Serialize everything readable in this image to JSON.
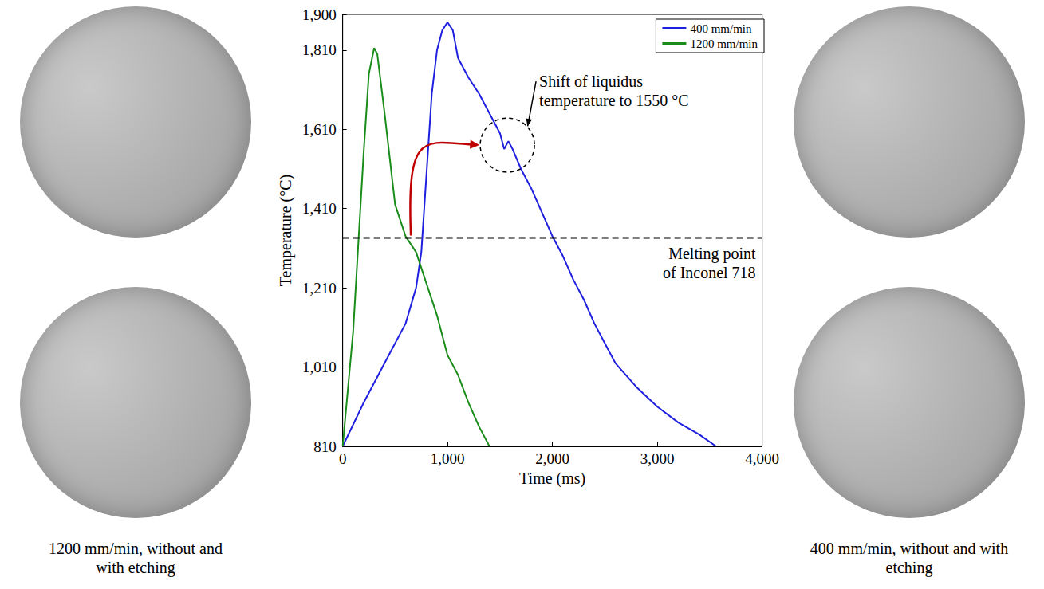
{
  "chart_data": {
    "type": "line",
    "xlabel": "Time (ms)",
    "ylabel": "Temperature (°C)",
    "xlim": [
      0,
      4000
    ],
    "xticks": [
      0,
      1000,
      2000,
      3000,
      4000
    ],
    "ylim": [
      810,
      1900
    ],
    "yticks": [
      810,
      1010,
      1210,
      1410,
      1610,
      1810,
      1900
    ],
    "grid": false,
    "legend": "upper right",
    "series": [
      {
        "name": "400 mm/min",
        "color": "#1f1fe0",
        "x": [
          0,
          200,
          400,
          600,
          700,
          750,
          800,
          850,
          900,
          950,
          1000,
          1050,
          1100,
          1200,
          1300,
          1400,
          1500,
          1540,
          1580,
          1620,
          1700,
          1800,
          1900,
          2000,
          2100,
          2200,
          2300,
          2400,
          2500,
          2600,
          2800,
          3000,
          3200,
          3400,
          3560
        ],
        "values": [
          810,
          920,
          1020,
          1120,
          1210,
          1300,
          1500,
          1700,
          1810,
          1860,
          1880,
          1860,
          1790,
          1740,
          1700,
          1650,
          1600,
          1560,
          1580,
          1560,
          1510,
          1460,
          1400,
          1340,
          1290,
          1230,
          1180,
          1120,
          1070,
          1020,
          960,
          910,
          870,
          840,
          810
        ]
      },
      {
        "name": "1200 mm/min",
        "color": "#1a8c1a",
        "x": [
          0,
          100,
          200,
          250,
          300,
          330,
          400,
          500,
          550,
          600,
          700,
          800,
          900,
          1000,
          1100,
          1200,
          1300,
          1400
        ],
        "values": [
          810,
          1100,
          1550,
          1750,
          1815,
          1800,
          1650,
          1420,
          1380,
          1340,
          1300,
          1220,
          1140,
          1040,
          990,
          920,
          860,
          810
        ]
      }
    ],
    "annotations": [
      {
        "text": "Melting point of Inconel 718",
        "y": 1336
      },
      {
        "text": "Shift of liquidus temperature to 1550 °C",
        "x": 1570,
        "y": 1570,
        "from": {
          "x": 650,
          "y": 1330
        }
      }
    ]
  },
  "captions": [
    "1200 mm/min, without and with etching",
    "400 mm/min, without and with etching"
  ]
}
